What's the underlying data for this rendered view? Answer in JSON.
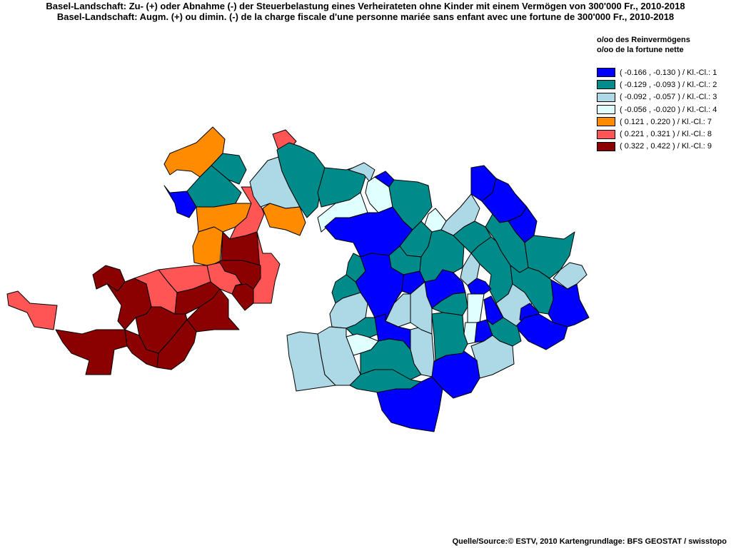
{
  "title_de": "Basel-Landschaft: Zu- (+) oder Abnahme (-) der Steuerbelastung  eines Verheirateten ohne Kinder mit einem Vermögen von 300'000 Fr., 2010-2018",
  "title_fr": "Basel-Landschaft: Augm. (+) ou dimin. (-) de la charge fiscale d'une personne mariée sans enfant avec une fortune de 300'000 Fr., 2010-2018",
  "legend": {
    "unit_de": "o/oo des Reinvermögens",
    "unit_fr": "o/oo de la fortune nette",
    "classes": [
      {
        "label": "( -0.166 , -0.130 ) / Kl.-Cl.: 1",
        "color": "#0000ff"
      },
      {
        "label": "( -0.129 , -0.093 ) / Kl.-Cl.: 2",
        "color": "#008b8b"
      },
      {
        "label": "( -0.092 , -0.057 ) / Kl.-Cl.: 3",
        "color": "#add8e6"
      },
      {
        "label": "( -0.056 , -0.020 ) / Kl.-Cl.: 4",
        "color": "#e0ffff"
      },
      {
        "label": "( 0.121 , 0.220 ) / Kl.-Cl.: 7",
        "color": "#ff8c00"
      },
      {
        "label": "( 0.221 , 0.321 ) / Kl.-Cl.: 8",
        "color": "#ff5555"
      },
      {
        "label": "( 0.322 , 0.422 ) / Kl.-Cl.: 9",
        "color": "#8b0000"
      }
    ]
  },
  "source": "Quelle/Source:© ESTV, 2010 Kartengrundlage: BFS GEOSTAT / swisstopo"
}
